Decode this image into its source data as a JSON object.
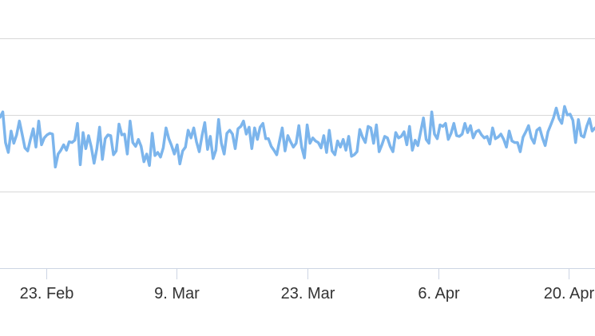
{
  "chart_data": {
    "type": "line",
    "title": "",
    "xlabel": "",
    "ylabel": "",
    "x_tick_labels": [
      {
        "label": "23. Feb",
        "day": 23
      },
      {
        "label": "9. Mar",
        "day": 37
      },
      {
        "label": "23. Mar",
        "day": 51
      },
      {
        "label": "6. Apr",
        "day": 65
      },
      {
        "label": "20. Apr",
        "day": 79
      }
    ],
    "x_range_days": [
      18.05,
      81.8
    ],
    "ylim": [
      0,
      3
    ],
    "grid": true,
    "legend": "none",
    "series_color": "#7cb5ec",
    "series": [
      {
        "values": [
          1.97,
          2.04,
          1.64,
          1.51,
          1.79,
          1.63,
          1.74,
          1.92,
          1.75,
          1.57,
          1.53,
          1.68,
          1.82,
          1.58,
          1.92,
          1.61,
          1.7,
          1.74,
          1.76,
          1.75,
          1.32,
          1.49,
          1.54,
          1.61,
          1.54,
          1.65,
          1.64,
          1.67,
          1.89,
          1.35,
          1.77,
          1.56,
          1.73,
          1.58,
          1.37,
          1.56,
          1.84,
          1.42,
          1.69,
          1.74,
          1.73,
          1.48,
          1.53,
          1.88,
          1.74,
          1.75,
          1.49,
          1.92,
          1.64,
          1.59,
          1.68,
          1.59,
          1.39,
          1.49,
          1.34,
          1.76,
          1.47,
          1.51,
          1.45,
          1.57,
          1.83,
          1.69,
          1.6,
          1.49,
          1.61,
          1.36,
          1.53,
          1.58,
          1.8,
          1.7,
          1.83,
          1.65,
          1.52,
          1.73,
          1.9,
          1.55,
          1.72,
          1.43,
          1.54,
          1.94,
          1.63,
          1.49,
          1.76,
          1.8,
          1.75,
          1.56,
          1.82,
          1.85,
          1.92,
          1.75,
          1.84,
          1.56,
          1.83,
          1.68,
          1.84,
          1.89,
          1.69,
          1.69,
          1.59,
          1.54,
          1.48,
          1.66,
          1.83,
          1.53,
          1.73,
          1.65,
          1.58,
          1.63,
          1.86,
          1.58,
          1.44,
          1.87,
          1.63,
          1.7,
          1.66,
          1.64,
          1.57,
          1.73,
          1.51,
          1.8,
          1.53,
          1.48,
          1.66,
          1.58,
          1.68,
          1.54,
          1.72,
          1.46,
          1.48,
          1.52,
          1.81,
          1.71,
          1.64,
          1.85,
          1.83,
          1.63,
          1.87,
          1.52,
          1.61,
          1.72,
          1.7,
          1.59,
          1.52,
          1.77,
          1.7,
          1.72,
          1.78,
          1.61,
          1.85,
          1.54,
          1.67,
          1.6,
          1.78,
          1.96,
          1.68,
          1.63,
          2.04,
          1.75,
          1.69,
          1.87,
          1.85,
          1.89,
          1.68,
          1.76,
          1.89,
          1.73,
          1.72,
          1.75,
          1.89,
          1.77,
          1.86,
          1.7,
          1.78,
          1.8,
          1.74,
          1.7,
          1.72,
          1.62,
          1.83,
          1.69,
          1.71,
          1.75,
          1.68,
          1.58,
          1.79,
          1.66,
          1.64,
          1.64,
          1.52,
          1.71,
          1.78,
          1.86,
          1.7,
          1.63,
          1.8,
          1.83,
          1.7,
          1.6,
          1.78,
          1.87,
          1.96,
          2.09,
          1.95,
          1.89,
          2.11,
          2.0,
          2.01,
          1.93,
          1.64,
          1.94,
          1.73,
          1.71,
          1.85,
          1.95,
          1.79,
          1.83
        ]
      }
    ]
  }
}
